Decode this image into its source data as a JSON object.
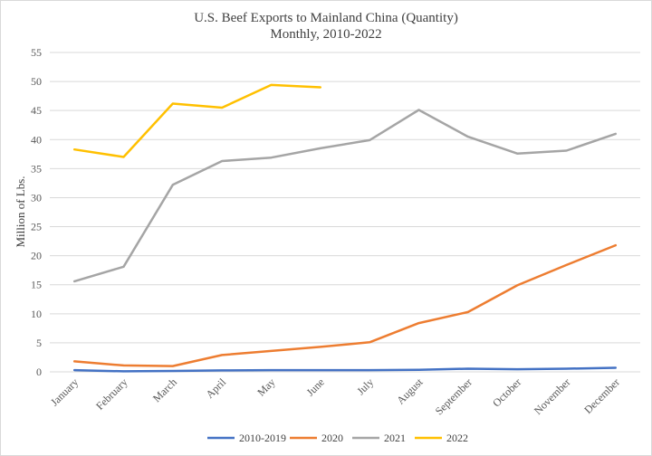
{
  "chart_data": {
    "type": "line",
    "title": "U.S. Beef Exports to Mainland China (Quantity)",
    "subtitle": "Monthly, 2010-2022",
    "xlabel": "",
    "ylabel": "Million of Lbs.",
    "ylim": [
      0,
      55
    ],
    "yticks": [
      0,
      5,
      10,
      15,
      20,
      25,
      30,
      35,
      40,
      45,
      50,
      55
    ],
    "grid": true,
    "legend": "bottom",
    "categories": [
      "January",
      "February",
      "March",
      "April",
      "May",
      "June",
      "July",
      "August",
      "September",
      "October",
      "November",
      "December"
    ],
    "series": [
      {
        "name": "2010-2019",
        "color": "#4472c4",
        "values": [
          0.3,
          0.1,
          0.15,
          0.25,
          0.3,
          0.3,
          0.3,
          0.35,
          0.55,
          0.45,
          0.55,
          0.7
        ]
      },
      {
        "name": "2020",
        "color": "#ed7d31",
        "values": [
          1.8,
          1.1,
          1.0,
          2.9,
          3.6,
          4.3,
          5.1,
          8.4,
          10.3,
          14.9,
          18.4,
          21.8
        ]
      },
      {
        "name": "2021",
        "color": "#a5a5a5",
        "values": [
          15.6,
          18.1,
          32.2,
          36.3,
          36.9,
          38.5,
          39.9,
          45.1,
          40.5,
          37.6,
          38.1,
          41.0
        ]
      },
      {
        "name": "2022",
        "color": "#ffc000",
        "values": [
          38.3,
          37.0,
          46.2,
          45.5,
          49.4,
          49.0,
          null,
          null,
          null,
          null,
          null,
          null
        ]
      }
    ]
  }
}
